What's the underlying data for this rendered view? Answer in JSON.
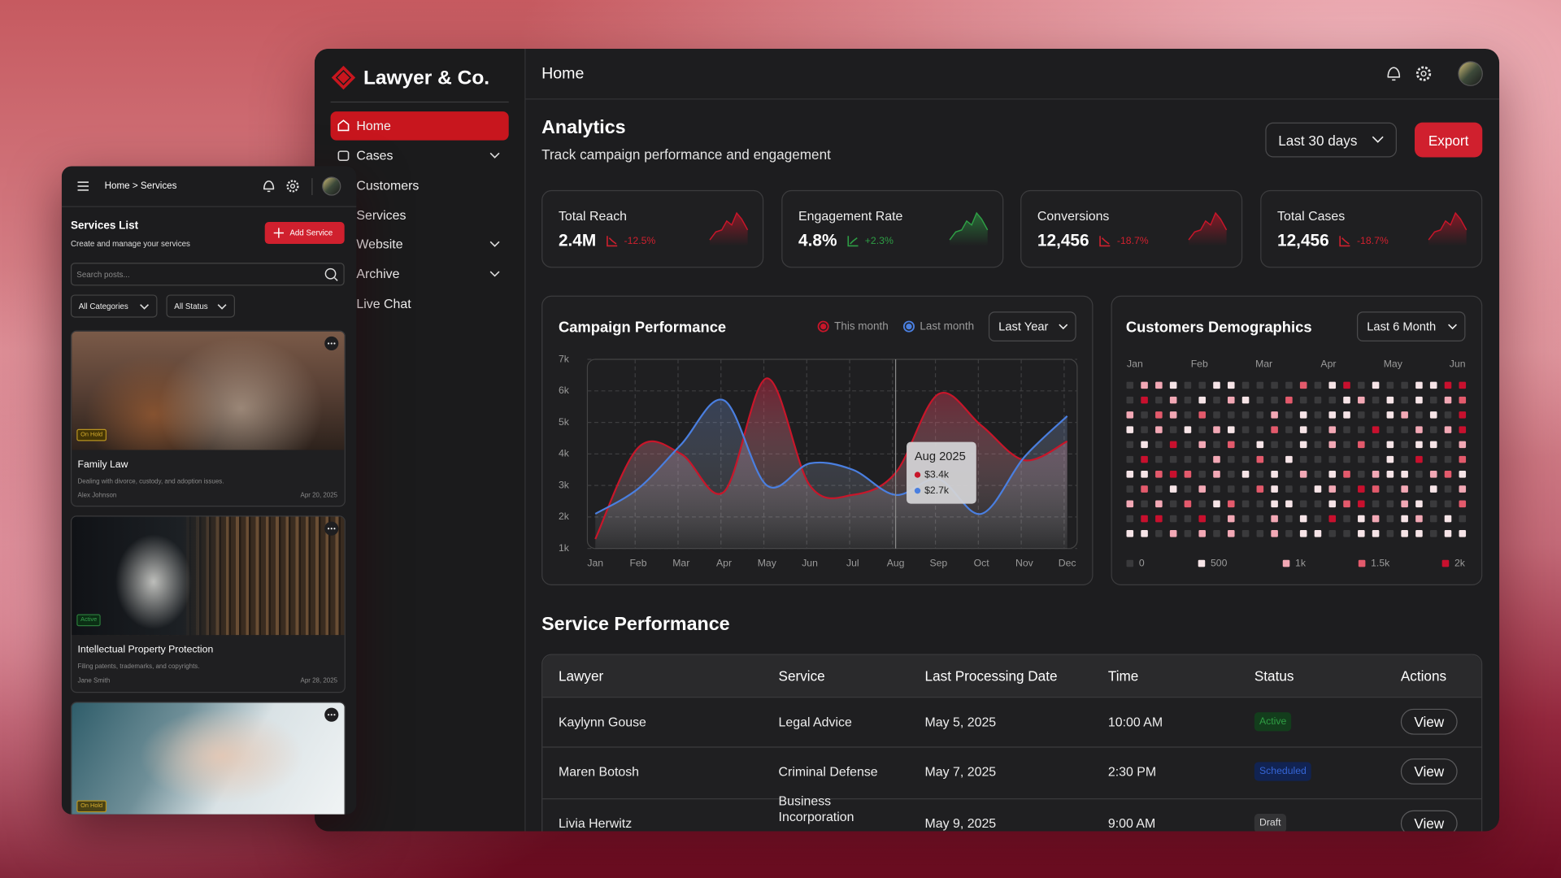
{
  "mobile": {
    "breadcrumb": "Home > Services",
    "title": "Services List",
    "subtitle": "Create and manage your services",
    "add_button": "Add Service",
    "search_placeholder": "Search posts...",
    "filters": [
      "All Categories",
      "All Status"
    ],
    "cards": [
      {
        "badge": "On Hold",
        "title": "Family Law",
        "description": "Dealing with divorce, custody, and adoption issues.",
        "author": "Alex Johnson",
        "date": "Apr 20, 2025"
      },
      {
        "badge": "Active",
        "title": "Intellectual Property Protection",
        "description": "Filing patents, trademarks, and copyrights.",
        "author": "Jane Smith",
        "date": "Apr 28, 2025"
      },
      {
        "badge": "On Hold"
      }
    ]
  },
  "sidebar": {
    "brand": "Lawyer & Co.",
    "nav": [
      "Home",
      "Cases",
      "Customers",
      "Services",
      "Website",
      "Archive",
      "Live Chat"
    ]
  },
  "header": {
    "title": "Home"
  },
  "analytics": {
    "title": "Analytics",
    "subtitle": "Track campaign performance and engagement",
    "range": "Last 30 days",
    "export": "Export"
  },
  "kpis": [
    {
      "label": "Total Reach",
      "value": "2.4M",
      "change": "-12.5%"
    },
    {
      "label": "Engagement Rate",
      "value": "4.8%",
      "change": "+2.3%"
    },
    {
      "label": "Conversions",
      "value": "12,456",
      "change": "-18.7%"
    },
    {
      "label": "Total Cases",
      "value": "12,456",
      "change": "-18.7%"
    }
  ],
  "chart_data": [
    {
      "type": "line",
      "title": "Campaign Performance",
      "range": "Last Year",
      "categories": [
        "Jan",
        "Feb",
        "Mar",
        "Apr",
        "May",
        "Jun",
        "Jul",
        "Aug",
        "Sep",
        "Oct",
        "Nov",
        "Dec"
      ],
      "series": [
        {
          "name": "This month",
          "color": "#c8162a",
          "values": [
            1300,
            4200,
            4000,
            2800,
            6400,
            3000,
            2700,
            3400,
            5900,
            4900,
            3800,
            4400
          ]
        },
        {
          "name": "Last month",
          "color": "#4a7fe0",
          "values": [
            2100,
            2900,
            4300,
            5700,
            3000,
            3700,
            3500,
            2700,
            3200,
            2100,
            3900,
            5200
          ]
        }
      ],
      "ylim": [
        1000,
        7000
      ],
      "yticks": [
        {
          "value": 1000,
          "label": "1k"
        },
        {
          "value": 2000,
          "label": "2k"
        },
        {
          "value": 3000,
          "label": "3k"
        },
        {
          "value": 4000,
          "label": "4k"
        },
        {
          "value": 5000,
          "label": "5k"
        },
        {
          "value": 6000,
          "label": "6k"
        },
        {
          "value": 7000,
          "label": "7k"
        }
      ],
      "grid": true,
      "tooltip": {
        "title": "Aug 2025",
        "labels": [
          "$3.4k",
          "$2.7k"
        ]
      }
    },
    {
      "type": "heatmap",
      "title": "Customers Demographics",
      "range": "Last 6 Month",
      "x_labels": [
        "Jan",
        "Feb",
        "Mar",
        "Apr",
        "May",
        "Jun"
      ],
      "legend": [
        {
          "value": 0,
          "label": "0",
          "color": "#3a3a3c"
        },
        {
          "value": 500,
          "label": "500",
          "color": "#f6e4e7"
        },
        {
          "value": 1000,
          "label": "1k",
          "color": "#f2a8b5"
        },
        {
          "value": 1500,
          "label": "1.5k",
          "color": "#e35a6c"
        },
        {
          "value": 2000,
          "label": "2k",
          "color": "#c8102e"
        }
      ],
      "values": [
        [
          0,
          1000,
          1000,
          500,
          0,
          0,
          500,
          500,
          0,
          0,
          0,
          0,
          1500,
          0,
          500,
          2000,
          0,
          500,
          0,
          0,
          500,
          500,
          2000,
          2000
        ],
        [
          0,
          2000,
          0,
          1000,
          0,
          500,
          0,
          1000,
          500,
          0,
          0,
          1500,
          0,
          0,
          0,
          500,
          1000,
          0,
          500,
          0,
          500,
          0,
          1000,
          1500
        ],
        [
          1000,
          0,
          1500,
          1000,
          0,
          1500,
          0,
          0,
          0,
          0,
          1000,
          0,
          500,
          0,
          500,
          500,
          0,
          0,
          500,
          1000,
          0,
          500,
          0,
          2000
        ],
        [
          500,
          0,
          1000,
          0,
          500,
          0,
          1000,
          500,
          0,
          0,
          1500,
          0,
          500,
          0,
          1000,
          0,
          0,
          2000,
          0,
          0,
          1000,
          0,
          1000,
          2000
        ],
        [
          0,
          500,
          0,
          2000,
          0,
          1000,
          0,
          1500,
          0,
          500,
          0,
          0,
          500,
          0,
          1000,
          0,
          1500,
          0,
          500,
          0,
          500,
          500,
          0,
          1000
        ],
        [
          0,
          2000,
          0,
          0,
          0,
          0,
          1000,
          0,
          0,
          1500,
          0,
          500,
          0,
          0,
          0,
          0,
          0,
          0,
          500,
          0,
          2000,
          0,
          0,
          1500
        ],
        [
          500,
          500,
          1500,
          2000,
          1500,
          0,
          1000,
          0,
          500,
          0,
          500,
          0,
          1000,
          0,
          500,
          1500,
          0,
          1000,
          500,
          500,
          0,
          1000,
          1500,
          500
        ],
        [
          0,
          1500,
          0,
          500,
          0,
          1000,
          0,
          0,
          0,
          1500,
          500,
          0,
          0,
          500,
          1000,
          0,
          2000,
          1500,
          0,
          1000,
          0,
          500,
          0,
          1000
        ],
        [
          1000,
          0,
          1000,
          0,
          1500,
          0,
          500,
          1500,
          0,
          0,
          500,
          500,
          0,
          0,
          500,
          1500,
          2000,
          0,
          0,
          1000,
          500,
          0,
          0,
          1500
        ],
        [
          0,
          2000,
          2000,
          0,
          0,
          2000,
          0,
          1000,
          0,
          0,
          1000,
          0,
          500,
          0,
          2000,
          0,
          500,
          1000,
          0,
          500,
          1000,
          0,
          500,
          0
        ],
        [
          500,
          500,
          0,
          1000,
          0,
          1000,
          0,
          1000,
          0,
          0,
          1000,
          0,
          500,
          500,
          0,
          0,
          500,
          500,
          0,
          500,
          500,
          0,
          500,
          500
        ]
      ]
    }
  ],
  "table": {
    "title": "Service Performance",
    "columns": [
      "Lawyer",
      "Service",
      "Last Processing Date",
      "Time",
      "Status",
      "Actions"
    ],
    "rows": [
      [
        "Kaylynn Gouse",
        "Legal Advice",
        "May 5, 2025",
        "10:00 AM",
        "Active",
        "View"
      ],
      [
        "Maren Botosh",
        "Criminal Defense",
        "May 7, 2025",
        "2:30 PM",
        "Scheduled",
        "View"
      ],
      [
        "Livia Herwitz",
        "Business Incorporation",
        "May 9, 2025",
        "9:00 AM",
        "Draft",
        "View"
      ]
    ]
  }
}
